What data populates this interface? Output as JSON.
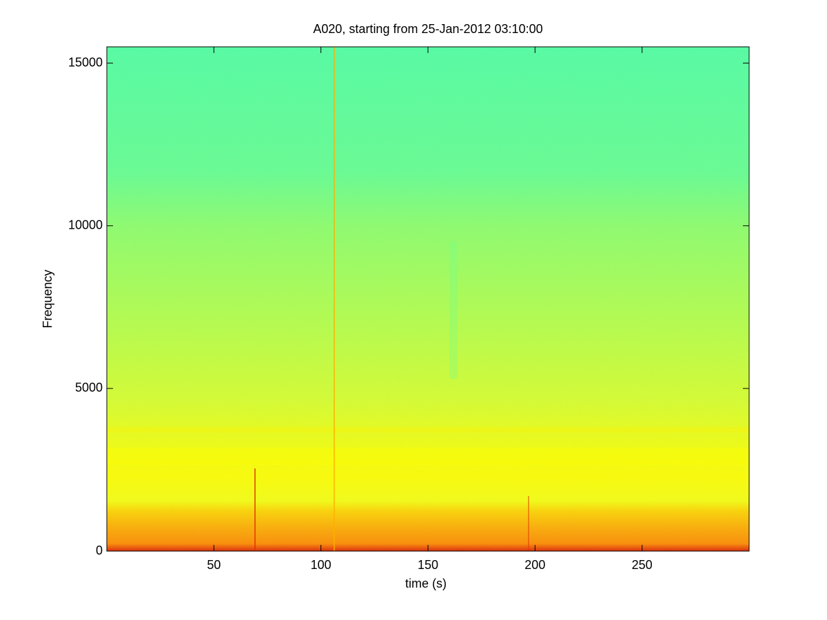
{
  "chart_data": {
    "type": "spectrogram",
    "title": "A020, starting from 25-Jan-2012 03:10:00",
    "x_label": "time (s)",
    "y_label": "Frequency",
    "xlim": [
      0,
      300
    ],
    "xticks": [
      50,
      100,
      150,
      200,
      250
    ],
    "ylim": [
      0,
      15500
    ],
    "yticks": [
      0,
      5000,
      10000,
      15000
    ]
  }
}
